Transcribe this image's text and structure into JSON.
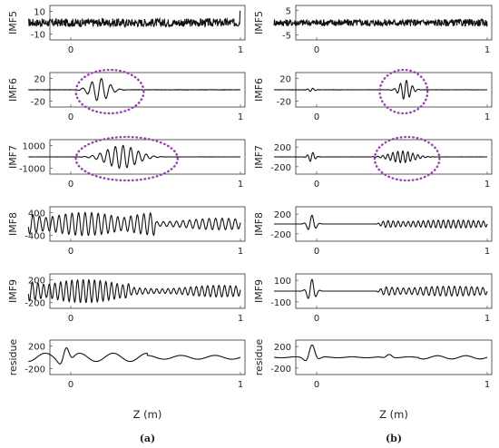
{
  "chart_data": [
    {
      "type": "line",
      "panel": "(a)",
      "xlabel": "Z (m)",
      "xlim": [
        -0.25,
        1.0
      ],
      "xticks": [
        "0",
        "1"
      ],
      "grid": false,
      "subplots": [
        {
          "ylabel": "IMF5",
          "ylim": [
            -15,
            15
          ],
          "yticks": [
            "10",
            "-10"
          ],
          "signal": "noise",
          "params": {
            "amp": 4,
            "spike_x": 1.0,
            "spike_amp": 10
          }
        },
        {
          "ylabel": "IMF6",
          "ylim": [
            -30,
            30
          ],
          "yticks": [
            "20",
            "-20"
          ],
          "signal": "wavelet",
          "params": {
            "center": 0.17,
            "width": 0.13,
            "freq": 18,
            "amp": 20,
            "base_noise": 0.7
          },
          "annotation": {
            "type": "dotted-ellipse",
            "x_range": [
              0.03,
              0.43
            ],
            "color": "#9b39b6"
          }
        },
        {
          "ylabel": "IMF7",
          "ylim": [
            -1500,
            1500
          ],
          "yticks": [
            "1000",
            "-1000"
          ],
          "signal": "wavelet",
          "params": {
            "center": 0.3,
            "width": 0.22,
            "freq": 22,
            "amp": 1000,
            "base_noise": 15
          },
          "annotation": {
            "type": "dotted-ellipse",
            "x_range": [
              0.03,
              0.63
            ],
            "color": "#9b39b6"
          }
        },
        {
          "ylabel": "IMF8",
          "ylim": [
            -600,
            600
          ],
          "yticks": [
            "400",
            "-400"
          ],
          "signal": "oscillation",
          "params": {
            "freq": 26,
            "amp": 400,
            "decay_start": 0.5,
            "decay_amp": 200
          }
        },
        {
          "ylabel": "IMF9",
          "ylim": [
            -300,
            300
          ],
          "yticks": [
            "200",
            "-200"
          ],
          "signal": "oscillation",
          "params": {
            "freq": 30,
            "amp": 200,
            "decay_start": 0.35,
            "decay_amp": 100
          }
        },
        {
          "ylabel": "residue",
          "ylim": [
            -300,
            300
          ],
          "yticks": [
            "200",
            "-200"
          ],
          "signal": "residue",
          "params": {
            "peak_x": -0.03,
            "peak_amp": 220,
            "tail_amp": 60
          }
        }
      ]
    },
    {
      "type": "line",
      "panel": "(b)",
      "xlabel": "Z (m)",
      "xlim": [
        -0.25,
        1.0
      ],
      "xticks": [
        "0",
        "1"
      ],
      "grid": false,
      "subplots": [
        {
          "ylabel": "IMF5",
          "ylim": [
            -7,
            7
          ],
          "yticks": [
            "5",
            "-5"
          ],
          "signal": "noise",
          "params": {
            "amp": 1.6,
            "spike_x": -1,
            "spike_amp": 0
          }
        },
        {
          "ylabel": "IMF6",
          "ylim": [
            -30,
            30
          ],
          "yticks": [
            "20",
            "-20"
          ],
          "signal": "wavelet",
          "params": {
            "center": 0.52,
            "width": 0.08,
            "freq": 28,
            "amp": 17,
            "base_noise": 0.5,
            "blip_x": -0.03,
            "blip_amp": 3
          },
          "annotation": {
            "type": "dotted-ellipse",
            "x_range": [
              0.37,
              0.65
            ],
            "color": "#9b39b6"
          }
        },
        {
          "ylabel": "IMF7",
          "ylim": [
            -350,
            350
          ],
          "yticks": [
            "200",
            "-200"
          ],
          "signal": "wavelet",
          "params": {
            "center": 0.5,
            "width": 0.17,
            "freq": 34,
            "amp": 120,
            "base_noise": 4,
            "blip_x": -0.03,
            "blip_amp": 100
          },
          "annotation": {
            "type": "dotted-ellipse",
            "x_range": [
              0.34,
              0.72
            ],
            "color": "#9b39b6"
          }
        },
        {
          "ylabel": "IMF8",
          "ylim": [
            -350,
            350
          ],
          "yticks": [
            "200",
            "-200"
          ],
          "signal": "late-oscillation",
          "params": {
            "freq": 34,
            "amp": 80,
            "start": 0.35,
            "blip_x": -0.03,
            "blip_amp": 180
          }
        },
        {
          "ylabel": "IMF9",
          "ylim": [
            -160,
            160
          ],
          "yticks": [
            "100",
            "-100"
          ],
          "signal": "late-oscillation",
          "params": {
            "freq": 30,
            "amp": 45,
            "start": 0.35,
            "blip_x": -0.03,
            "blip_amp": 110
          }
        },
        {
          "ylabel": "residue",
          "ylim": [
            -320,
            320
          ],
          "yticks": [
            "200",
            "-200"
          ],
          "signal": "residue-b",
          "params": {
            "peak_x": -0.03,
            "peak_amp": 240,
            "tail_amp": 30,
            "bump_x": 0.42,
            "bump_amp": 60
          }
        }
      ]
    }
  ]
}
